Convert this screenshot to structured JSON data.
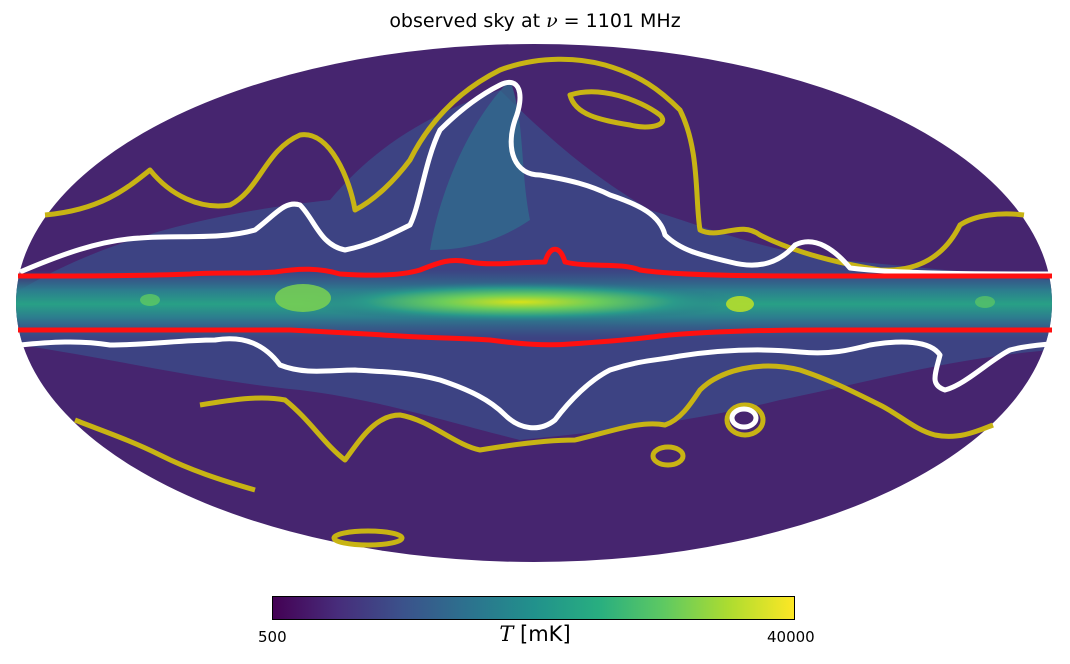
{
  "title": {
    "prefix": "observed sky at ",
    "symbol": "ν",
    "suffix": " = 1101 MHz"
  },
  "colorbar": {
    "min_label": "500",
    "max_label": "40000",
    "var_symbol": "T",
    "unit": " [mK]",
    "colormap": "viridis",
    "stops": [
      "#440154",
      "#3b528b",
      "#21918c",
      "#5ec962",
      "#fde725"
    ]
  },
  "contour_colors": {
    "outer": "#c8b414",
    "middle": "#ffffff",
    "inner": "#ff1010"
  }
}
